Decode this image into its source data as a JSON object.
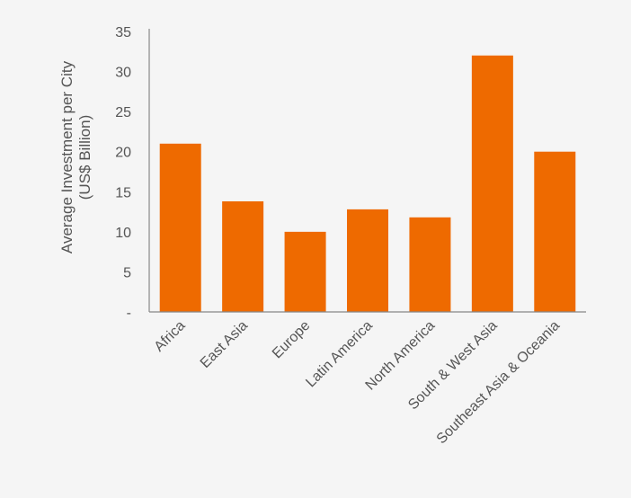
{
  "chart_data": {
    "type": "bar",
    "title": "",
    "xlabel": "",
    "ylabel_lines": [
      "Average Investment per City",
      "(US$ Billion)"
    ],
    "categories": [
      "Africa",
      "East Asia",
      "Europe",
      "Latin America",
      "North America",
      "South & West Asia",
      "Southeast Asia & Oceania"
    ],
    "values": [
      21,
      13.8,
      10,
      12.8,
      11.8,
      32,
      20
    ],
    "ylim": [
      0,
      35
    ],
    "yticks": [
      0,
      5,
      10,
      15,
      20,
      25,
      30,
      35
    ],
    "ytick_labels": [
      "-",
      "5",
      "10",
      "15",
      "20",
      "25",
      "30",
      "35"
    ],
    "grid": false,
    "legend": "none",
    "bar_color": "#ee6a00",
    "axis_color": "#888888"
  }
}
